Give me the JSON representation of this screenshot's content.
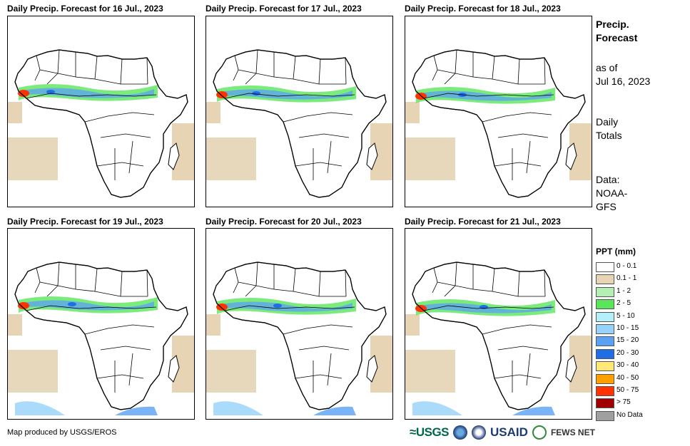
{
  "panels": [
    {
      "title": "Daily Precip. Forecast for 16 Jul., 2023",
      "variant": 0
    },
    {
      "title": "Daily Precip. Forecast for 17 Jul., 2023",
      "variant": 1
    },
    {
      "title": "Daily Precip. Forecast for 18 Jul., 2023",
      "variant": 2
    },
    {
      "title": "Daily Precip. Forecast for 19 Jul., 2023",
      "variant": 3
    },
    {
      "title": "Daily Precip. Forecast for 20 Jul., 2023",
      "variant": 4
    },
    {
      "title": "Daily Precip. Forecast for 21 Jul., 2023",
      "variant": 5
    }
  ],
  "side": {
    "heading_line1": "Precip.",
    "heading_line2": "Forecast",
    "asof_line1": "as of",
    "asof_line2": "Jul 16, 2023",
    "daily_line1": "Daily",
    "daily_line2": "Totals",
    "data_line1": "Data:",
    "data_line2": "NOAA-",
    "data_line3": "GFS"
  },
  "legend": {
    "title": "PPT (mm)",
    "items": [
      {
        "label": "0 - 0.1",
        "color": "#ffffff"
      },
      {
        "label": "0.1 - 1",
        "color": "#e6d4b4"
      },
      {
        "label": "1 - 2",
        "color": "#b4f0b4"
      },
      {
        "label": "2 - 5",
        "color": "#5ae65a"
      },
      {
        "label": "5 - 10",
        "color": "#b4f0fa"
      },
      {
        "label": "10 - 15",
        "color": "#96d2fa"
      },
      {
        "label": "15 - 20",
        "color": "#5aa0f5"
      },
      {
        "label": "20 - 30",
        "color": "#1e6ee6"
      },
      {
        "label": "30 - 40",
        "color": "#ffe878"
      },
      {
        "label": "40 - 50",
        "color": "#ffa000"
      },
      {
        "label": "50 - 75",
        "color": "#ff3200"
      },
      {
        "label": "> 75",
        "color": "#a00000"
      },
      {
        "label": "No Data",
        "color": "#a0a0a0"
      }
    ]
  },
  "footer": {
    "credit": "Map produced by USGS/EROS"
  },
  "logos": {
    "usgs": "USGS",
    "usaid": "USAID",
    "fews": "FEWS NET"
  }
}
